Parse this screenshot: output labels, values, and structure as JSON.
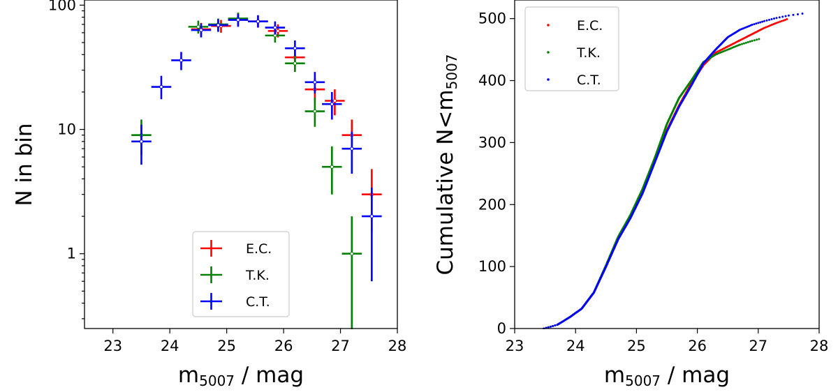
{
  "chart_data": [
    {
      "type": "errorbar",
      "panel": "left",
      "xlabel": "m5007 / mag",
      "xlabel_base": "m",
      "xlabel_sub": "5007",
      "xlabel_rest": " / mag",
      "ylabel": "N in bin",
      "xlim": [
        22.5,
        28
      ],
      "ylim": [
        0.25,
        110
      ],
      "yscale": "log",
      "xticks": [
        23,
        24,
        25,
        26,
        27,
        28
      ],
      "xtick_labels": [
        "23",
        "24",
        "25",
        "26",
        "27",
        "28"
      ],
      "yticks": [
        1,
        10,
        100
      ],
      "ytick_labels": [
        "1",
        "10",
        "100"
      ],
      "bin_width": 0.35,
      "legend_position": "lower-center",
      "series": [
        {
          "name": "E.C.",
          "color": "#ff0000",
          "x": [
            24.55,
            24.9,
            25.2,
            25.55,
            25.9,
            26.2,
            26.55,
            26.9,
            27.2,
            27.55
          ],
          "y": [
            64,
            68,
            77,
            74,
            62,
            38,
            21,
            17,
            9,
            3
          ],
          "yerr_lo": [
            56,
            60,
            68,
            66,
            55,
            32,
            17,
            13,
            6.5,
            1.5
          ],
          "yerr_hi": [
            72,
            76,
            86,
            82,
            70,
            44,
            26,
            21,
            12,
            4.8
          ]
        },
        {
          "name": "T.K.",
          "color": "#008000",
          "x": [
            23.5,
            24.5,
            24.85,
            25.2,
            25.85,
            26.2,
            26.55,
            26.85,
            27.2
          ],
          "y": [
            9,
            67,
            70,
            78,
            57,
            34,
            14,
            5,
            1
          ],
          "yerr_lo": [
            6.2,
            59,
            62,
            69,
            50,
            29,
            10.5,
            3,
            0.2
          ],
          "yerr_hi": [
            12,
            75,
            78,
            87,
            65,
            40,
            18,
            7.3,
            2
          ]
        },
        {
          "name": "C.T.",
          "color": "#0000ff",
          "x": [
            23.5,
            23.85,
            24.2,
            24.55,
            24.85,
            25.2,
            25.55,
            25.85,
            26.2,
            26.55,
            26.85,
            27.2,
            27.55
          ],
          "y": [
            8,
            22,
            36,
            63,
            69,
            76,
            74,
            66,
            45,
            24,
            16,
            7,
            2
          ],
          "yerr_lo": [
            5.2,
            17.5,
            30,
            55,
            61,
            67,
            66,
            58,
            39,
            19.5,
            12,
            4.4,
            0.6
          ],
          "yerr_hi": [
            10.9,
            27,
            42,
            71,
            77,
            85,
            83,
            74,
            52,
            29,
            20,
            9.6,
            3.4
          ]
        }
      ]
    },
    {
      "type": "scatter",
      "panel": "right",
      "xlabel": "m5007 / mag",
      "xlabel_base": "m",
      "xlabel_sub": "5007",
      "xlabel_rest": " / mag",
      "ylabel": "Cumulative N<m5007",
      "ylabel_base": "Cumulative N<m",
      "ylabel_sub": "5007",
      "xlim": [
        23,
        28
      ],
      "ylim": [
        0,
        530
      ],
      "xticks": [
        23,
        24,
        25,
        26,
        27,
        28
      ],
      "xtick_labels": [
        "23",
        "24",
        "25",
        "26",
        "27",
        "28"
      ],
      "yticks": [
        0,
        100,
        200,
        300,
        400,
        500
      ],
      "ytick_labels": [
        "0",
        "100",
        "200",
        "300",
        "400",
        "500"
      ],
      "legend_position": "top-left",
      "series": [
        {
          "name": "E.C.",
          "color": "#ff0000",
          "n_points": 500,
          "curve_x": [
            23.48,
            23.7,
            23.9,
            24.1,
            24.3,
            24.5,
            24.7,
            24.9,
            25.1,
            25.3,
            25.5,
            25.7,
            25.9,
            26.1,
            26.3,
            26.5,
            26.7,
            26.9,
            27.1,
            27.3,
            27.5
          ],
          "curve_y": [
            0,
            6,
            18,
            32,
            58,
            100,
            145,
            180,
            220,
            270,
            320,
            360,
            395,
            425,
            445,
            455,
            465,
            475,
            485,
            493,
            500
          ]
        },
        {
          "name": "T.K.",
          "color": "#008000",
          "n_points": 468,
          "curve_x": [
            23.48,
            23.7,
            23.9,
            24.1,
            24.3,
            24.5,
            24.7,
            24.9,
            25.1,
            25.3,
            25.5,
            25.7,
            25.9,
            26.1,
            26.3,
            26.5,
            26.7,
            26.9,
            27.05
          ],
          "curve_y": [
            0,
            6,
            18,
            32,
            58,
            102,
            148,
            183,
            225,
            275,
            330,
            372,
            400,
            430,
            442,
            450,
            458,
            464,
            468
          ]
        },
        {
          "name": "C.T.",
          "color": "#0000ff",
          "n_points": 509,
          "curve_x": [
            23.48,
            23.7,
            23.9,
            24.1,
            24.3,
            24.5,
            24.7,
            24.9,
            25.1,
            25.3,
            25.5,
            25.7,
            25.9,
            26.1,
            26.3,
            26.5,
            26.7,
            26.9,
            27.1,
            27.3,
            27.5,
            27.8
          ],
          "curve_y": [
            0,
            6,
            18,
            32,
            58,
            100,
            144,
            178,
            218,
            268,
            318,
            358,
            392,
            428,
            450,
            470,
            482,
            490,
            496,
            501,
            505,
            509
          ]
        }
      ]
    }
  ]
}
